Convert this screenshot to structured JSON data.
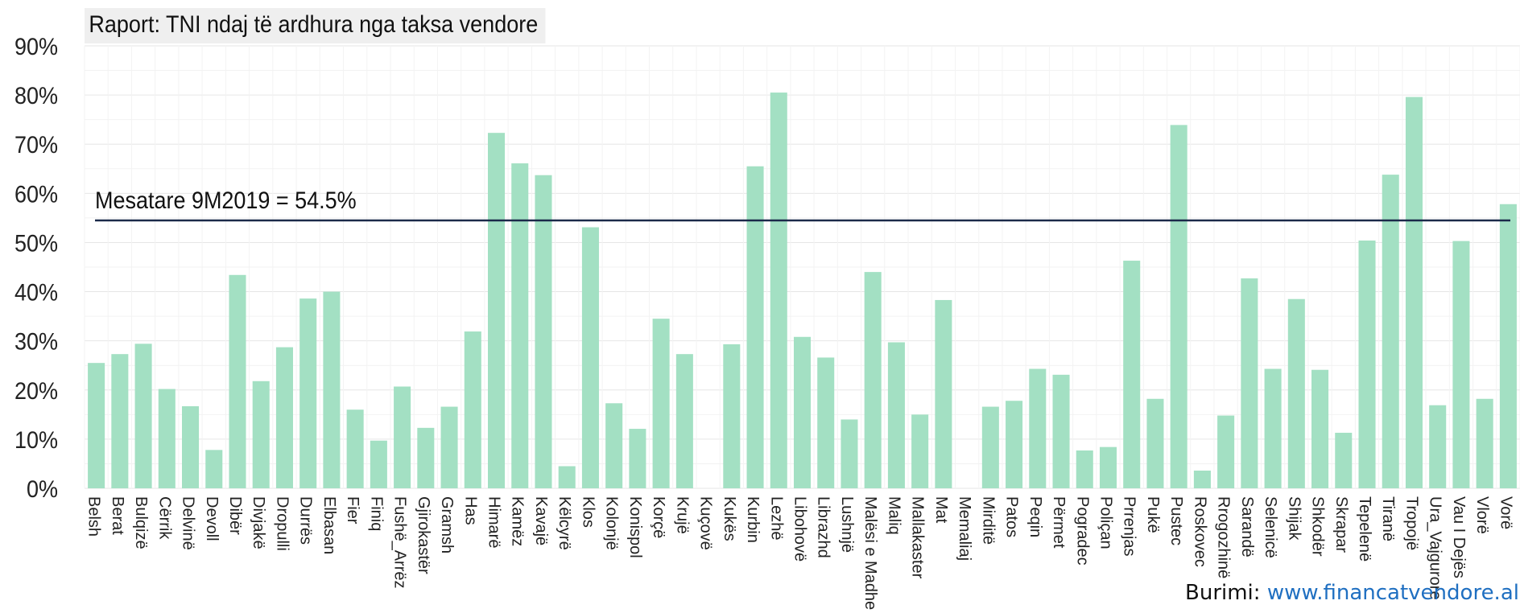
{
  "chart_data": {
    "type": "bar",
    "title": "Raport: TNI ndaj të ardhura nga taksa vendore",
    "xlabel": "",
    "ylabel": "",
    "ylim": [
      0,
      90
    ],
    "yticks": [
      "0%",
      "10%",
      "20%",
      "30%",
      "40%",
      "50%",
      "60%",
      "70%",
      "80%",
      "90%"
    ],
    "grid": true,
    "bar_color": "#a3e0c3",
    "categories": [
      "Belsh",
      "Berat",
      "Bulqizë",
      "Cërrik",
      "Delvinë",
      "Devoll",
      "Dibër",
      "Divjakë",
      "Dropulli",
      "Durrës",
      "Elbasan",
      "Fier",
      "Finiq",
      "Fushë_Arrëz",
      "Gjirokastër",
      "Gramsh",
      "Has",
      "Himarë",
      "Kamëz",
      "Kavajë",
      "Këlcyrë",
      "Klos",
      "Kolonjë",
      "Konispol",
      "Korçë",
      "Krujë",
      "Kuçovë",
      "Kukës",
      "Kurbin",
      "Lezhë",
      "Libohovë",
      "Librazhd",
      "Lushnjë",
      "Malësi e Madhe",
      "Maliq",
      "Mallakaster",
      "Mat",
      "Memaliaj",
      "Mirditë",
      "Patos",
      "Peqin",
      "Përmet",
      "Pogradec",
      "Poliçan",
      "Prrenjas",
      "Pukë",
      "Pustec",
      "Roskovec",
      "Rrogozhinë",
      "Sarandë",
      "Selenicë",
      "Shijak",
      "Shkodër",
      "Skrapar",
      "Tepelenë",
      "Tiranë",
      "Tropojë",
      "Ura_Vajgurore",
      "Vau I Dejës",
      "Vlorë",
      "Vorë"
    ],
    "values": [
      25.5,
      27.3,
      29.4,
      20.2,
      16.7,
      7.8,
      43.4,
      21.8,
      28.7,
      38.6,
      40.0,
      16.0,
      9.7,
      20.7,
      12.3,
      16.6,
      31.9,
      72.3,
      66.1,
      63.7,
      4.5,
      53.1,
      17.3,
      12.1,
      34.5,
      27.3,
      0,
      29.3,
      65.5,
      80.5,
      30.8,
      26.6,
      14.0,
      44.0,
      29.7,
      15.0,
      38.3,
      0,
      16.6,
      17.8,
      24.3,
      23.1,
      7.7,
      8.4,
      46.3,
      18.2,
      73.9,
      3.6,
      14.8,
      42.7,
      24.3,
      38.5,
      24.1,
      11.3,
      50.4,
      63.8,
      79.6,
      16.9,
      50.3,
      18.2,
      57.8
    ],
    "reference_line": {
      "value": 54.5,
      "label": "Mesatare 9M2019 = 54.5%",
      "color": "#1b2a4a"
    }
  },
  "source": {
    "label": "Burimi:",
    "url": "www.financatvendore.al"
  }
}
